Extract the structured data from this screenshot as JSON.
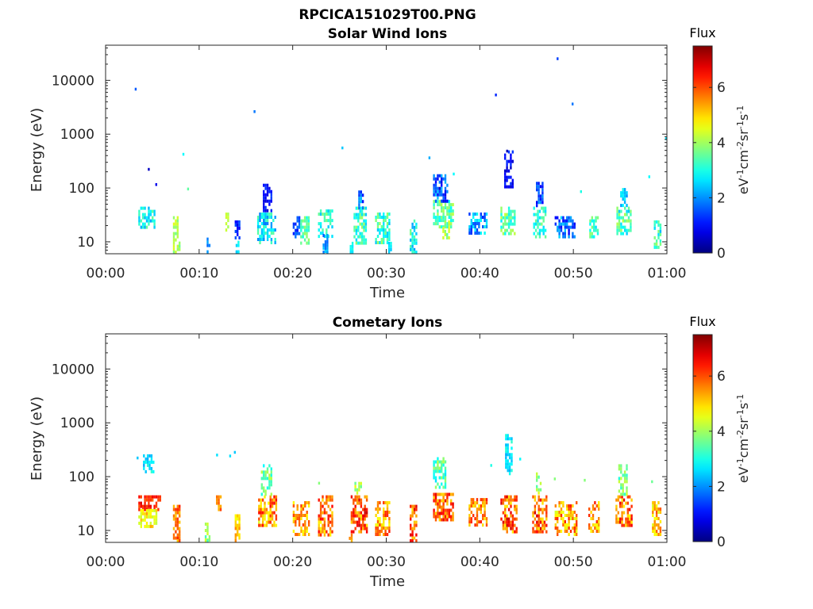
{
  "figure": {
    "filename": "RPCICA151029T00.PNG"
  },
  "chart_data": [
    {
      "type": "heatmap",
      "title": "Solar Wind Ions",
      "xlabel": "Time",
      "ylabel": "Energy (eV)",
      "x_tick_labels": [
        "00:00",
        "00:10",
        "00:20",
        "00:30",
        "00:40",
        "00:50",
        "01:00"
      ],
      "x_ticks_min": [
        0,
        10,
        20,
        30,
        40,
        50,
        60
      ],
      "xlim_min": [
        0,
        60
      ],
      "y_scale": "log",
      "y_tick_labels": [
        "10",
        "100",
        "1000",
        "10000"
      ],
      "y_ticks": [
        10,
        100,
        1000,
        10000
      ],
      "ylim": [
        6,
        45000
      ],
      "colorbar": {
        "title": "Flux",
        "unit": "eV-1cm-2sr-1s-1",
        "range": [
          0,
          7.5
        ],
        "tick_labels": [
          "0",
          "2",
          "4",
          "6"
        ],
        "ticks": [
          0,
          2,
          4,
          6
        ],
        "colormap": "jet"
      },
      "clusters": [
        {
          "t": [
            3.5,
            5.2
          ],
          "e": [
            18,
            45
          ],
          "v": [
            2.1,
            3.6
          ]
        },
        {
          "t": [
            7.2,
            8.0
          ],
          "e": [
            6,
            30
          ],
          "v": [
            3.5,
            4.5
          ]
        },
        {
          "t": [
            10.8,
            11.1
          ],
          "e": [
            6,
            12
          ],
          "v": [
            1.6,
            2.2
          ]
        },
        {
          "t": [
            12.8,
            13.2
          ],
          "e": [
            14,
            40
          ],
          "v": [
            4.0,
            4.5
          ]
        },
        {
          "t": [
            13.8,
            14.3
          ],
          "e": [
            12,
            25
          ],
          "v": [
            0.8,
            1.6
          ]
        },
        {
          "t": [
            13.9,
            14.2
          ],
          "e": [
            6,
            12
          ],
          "v": [
            2.2,
            3.0
          ]
        },
        {
          "t": [
            16.2,
            18.2
          ],
          "e": [
            10,
            35
          ],
          "v": [
            1.8,
            3.5
          ]
        },
        {
          "t": [
            16.8,
            17.8
          ],
          "e": [
            40,
            120
          ],
          "v": [
            0.6,
            1.4
          ]
        },
        {
          "t": [
            20.0,
            20.8
          ],
          "e": [
            12,
            30
          ],
          "v": [
            1.0,
            1.8
          ]
        },
        {
          "t": [
            20.8,
            21.8
          ],
          "e": [
            10,
            30
          ],
          "v": [
            2.8,
            4.0
          ]
        },
        {
          "t": [
            22.7,
            24.2
          ],
          "e": [
            12,
            40
          ],
          "v": [
            2.4,
            3.8
          ]
        },
        {
          "t": [
            23.2,
            23.8
          ],
          "e": [
            6,
            14
          ],
          "v": [
            1.6,
            2.6
          ]
        },
        {
          "t": [
            26.5,
            27.8
          ],
          "e": [
            10,
            45
          ],
          "v": [
            2.4,
            4.0
          ]
        },
        {
          "t": [
            27.0,
            27.6
          ],
          "e": [
            45,
            90
          ],
          "v": [
            1.0,
            2.4
          ]
        },
        {
          "t": [
            26.1,
            26.4
          ],
          "e": [
            6,
            10
          ],
          "v": [
            2.5,
            3.2
          ]
        },
        {
          "t": [
            28.8,
            30.3
          ],
          "e": [
            10,
            35
          ],
          "v": [
            2.4,
            4.0
          ]
        },
        {
          "t": [
            30.2,
            30.6
          ],
          "e": [
            6,
            10
          ],
          "v": [
            2.3,
            3.0
          ]
        },
        {
          "t": [
            32.5,
            33.3
          ],
          "e": [
            6,
            26
          ],
          "v": [
            2.0,
            3.8
          ]
        },
        {
          "t": [
            35.0,
            37.2
          ],
          "e": [
            20,
            60
          ],
          "v": [
            2.8,
            4.2
          ]
        },
        {
          "t": [
            35.0,
            36.5
          ],
          "e": [
            60,
            180
          ],
          "v": [
            0.6,
            2.4
          ]
        },
        {
          "t": [
            36.0,
            36.8
          ],
          "e": [
            12,
            25
          ],
          "v": [
            3.5,
            4.5
          ]
        },
        {
          "t": [
            38.8,
            40.8
          ],
          "e": [
            15,
            35
          ],
          "v": [
            1.2,
            3.0
          ]
        },
        {
          "t": [
            42.2,
            43.8
          ],
          "e": [
            15,
            45
          ],
          "v": [
            2.6,
            4.4
          ]
        },
        {
          "t": [
            42.6,
            43.5
          ],
          "e": [
            100,
            500
          ],
          "v": [
            0.5,
            1.4
          ]
        },
        {
          "t": [
            45.7,
            47.0
          ],
          "e": [
            12,
            45
          ],
          "v": [
            2.4,
            3.8
          ]
        },
        {
          "t": [
            46.0,
            46.8
          ],
          "e": [
            50,
            130
          ],
          "v": [
            0.8,
            2.2
          ]
        },
        {
          "t": [
            48.0,
            50.2
          ],
          "e": [
            12,
            30
          ],
          "v": [
            0.8,
            2.6
          ]
        },
        {
          "t": [
            51.7,
            52.7
          ],
          "e": [
            12,
            30
          ],
          "v": [
            2.6,
            4.0
          ]
        },
        {
          "t": [
            54.6,
            56.2
          ],
          "e": [
            15,
            45
          ],
          "v": [
            2.4,
            4.2
          ]
        },
        {
          "t": [
            55.0,
            55.7
          ],
          "e": [
            45,
            100
          ],
          "v": [
            2.0,
            3.2
          ]
        },
        {
          "t": [
            58.6,
            59.4
          ],
          "e": [
            8,
            25
          ],
          "v": [
            2.2,
            4.0
          ]
        }
      ],
      "points": [
        {
          "t": 3.2,
          "e": 6800,
          "v": 1.6
        },
        {
          "t": 8.3,
          "e": 420,
          "v": 2.8
        },
        {
          "t": 8.8,
          "e": 95,
          "v": 3.5
        },
        {
          "t": 15.9,
          "e": 2600,
          "v": 1.8
        },
        {
          "t": 25.3,
          "e": 550,
          "v": 2.4
        },
        {
          "t": 34.6,
          "e": 360,
          "v": 2.2
        },
        {
          "t": 37.2,
          "e": 180,
          "v": 2.8
        },
        {
          "t": 41.7,
          "e": 5300,
          "v": 1.2
        },
        {
          "t": 48.3,
          "e": 25000,
          "v": 1.4
        },
        {
          "t": 49.9,
          "e": 3600,
          "v": 1.8
        },
        {
          "t": 50.8,
          "e": 85,
          "v": 3.0
        },
        {
          "t": 58.1,
          "e": 160,
          "v": 2.8
        },
        {
          "t": 59.9,
          "e": 820,
          "v": 2.6
        },
        {
          "t": 4.6,
          "e": 220,
          "v": 0.5
        },
        {
          "t": 5.4,
          "e": 115,
          "v": 0.8
        },
        {
          "t": 42.9,
          "e": 480,
          "v": 0.4
        }
      ]
    },
    {
      "type": "heatmap",
      "title": "Cometary Ions",
      "xlabel": "Time",
      "ylabel": "Energy (eV)",
      "x_tick_labels": [
        "00:00",
        "00:10",
        "00:20",
        "00:30",
        "00:40",
        "00:50",
        "01:00"
      ],
      "x_ticks_min": [
        0,
        10,
        20,
        30,
        40,
        50,
        60
      ],
      "xlim_min": [
        0,
        60
      ],
      "y_scale": "log",
      "y_tick_labels": [
        "10",
        "100",
        "1000",
        "10000"
      ],
      "y_ticks": [
        10,
        100,
        1000,
        10000
      ],
      "ylim": [
        6,
        45000
      ],
      "colorbar": {
        "title": "Flux",
        "unit": "eV-1cm-2sr-1s-1",
        "range": [
          0,
          7.5
        ],
        "tick_labels": [
          "0",
          "2",
          "4",
          "6"
        ],
        "ticks": [
          0,
          2,
          4,
          6
        ],
        "colormap": "jet"
      },
      "clusters": [
        {
          "t": [
            3.5,
            5.8
          ],
          "e": [
            25,
            45
          ],
          "v": [
            5.8,
            6.8
          ]
        },
        {
          "t": [
            3.5,
            5.5
          ],
          "e": [
            12,
            25
          ],
          "v": [
            4.2,
            5.4
          ]
        },
        {
          "t": [
            4.0,
            5.2
          ],
          "e": [
            120,
            260
          ],
          "v": [
            2.2,
            3.2
          ]
        },
        {
          "t": [
            7.2,
            8.0
          ],
          "e": [
            6,
            30
          ],
          "v": [
            5.0,
            6.8
          ]
        },
        {
          "t": [
            10.6,
            11.2
          ],
          "e": [
            6,
            14
          ],
          "v": [
            3.2,
            4.4
          ]
        },
        {
          "t": [
            11.8,
            12.4
          ],
          "e": [
            25,
            45
          ],
          "v": [
            5.0,
            6.2
          ]
        },
        {
          "t": [
            13.8,
            14.3
          ],
          "e": [
            6,
            20
          ],
          "v": [
            4.6,
            5.6
          ]
        },
        {
          "t": [
            16.3,
            18.3
          ],
          "e": [
            12,
            45
          ],
          "v": [
            4.4,
            6.6
          ]
        },
        {
          "t": [
            16.6,
            17.8
          ],
          "e": [
            50,
            170
          ],
          "v": [
            2.8,
            4.2
          ]
        },
        {
          "t": [
            20.0,
            21.8
          ],
          "e": [
            8,
            35
          ],
          "v": [
            4.6,
            6.2
          ]
        },
        {
          "t": [
            22.7,
            24.3
          ],
          "e": [
            8,
            45
          ],
          "v": [
            4.6,
            6.6
          ]
        },
        {
          "t": [
            26.2,
            28.0
          ],
          "e": [
            10,
            45
          ],
          "v": [
            4.8,
            7.0
          ]
        },
        {
          "t": [
            26.6,
            27.4
          ],
          "e": [
            50,
            80
          ],
          "v": [
            3.6,
            4.6
          ]
        },
        {
          "t": [
            26.0,
            26.4
          ],
          "e": [
            6,
            10
          ],
          "v": [
            5.2,
            6.0
          ]
        },
        {
          "t": [
            28.8,
            30.3
          ],
          "e": [
            8,
            35
          ],
          "v": [
            4.6,
            6.4
          ]
        },
        {
          "t": [
            32.5,
            33.3
          ],
          "e": [
            6,
            30
          ],
          "v": [
            4.8,
            6.8
          ]
        },
        {
          "t": [
            35.0,
            37.2
          ],
          "e": [
            15,
            50
          ],
          "v": [
            5.0,
            6.8
          ]
        },
        {
          "t": [
            35.0,
            36.4
          ],
          "e": [
            60,
            230
          ],
          "v": [
            2.6,
            4.2
          ]
        },
        {
          "t": [
            38.8,
            40.8
          ],
          "e": [
            12,
            40
          ],
          "v": [
            4.6,
            6.4
          ]
        },
        {
          "t": [
            42.2,
            43.9
          ],
          "e": [
            10,
            45
          ],
          "v": [
            4.8,
            7.0
          ]
        },
        {
          "t": [
            42.7,
            43.5
          ],
          "e": [
            120,
            620
          ],
          "v": [
            2.2,
            3.2
          ]
        },
        {
          "t": [
            45.6,
            47.1
          ],
          "e": [
            10,
            45
          ],
          "v": [
            4.8,
            6.9
          ]
        },
        {
          "t": [
            46.0,
            46.6
          ],
          "e": [
            50,
            120
          ],
          "v": [
            3.4,
            4.6
          ]
        },
        {
          "t": [
            48.0,
            50.3
          ],
          "e": [
            8,
            35
          ],
          "v": [
            4.4,
            6.4
          ]
        },
        {
          "t": [
            51.6,
            52.8
          ],
          "e": [
            10,
            35
          ],
          "v": [
            4.6,
            6.4
          ]
        },
        {
          "t": [
            54.5,
            56.3
          ],
          "e": [
            12,
            45
          ],
          "v": [
            4.6,
            6.8
          ]
        },
        {
          "t": [
            54.8,
            55.8
          ],
          "e": [
            50,
            170
          ],
          "v": [
            3.0,
            4.4
          ]
        },
        {
          "t": [
            58.4,
            59.4
          ],
          "e": [
            8,
            35
          ],
          "v": [
            4.4,
            6.0
          ]
        }
      ],
      "points": [
        {
          "t": 3.4,
          "e": 220,
          "v": 2.4
        },
        {
          "t": 11.9,
          "e": 250,
          "v": 2.6
        },
        {
          "t": 13.3,
          "e": 240,
          "v": 2.6
        },
        {
          "t": 13.8,
          "e": 280,
          "v": 2.4
        },
        {
          "t": 22.8,
          "e": 75,
          "v": 3.8
        },
        {
          "t": 41.2,
          "e": 160,
          "v": 3.0
        },
        {
          "t": 44.3,
          "e": 210,
          "v": 2.8
        },
        {
          "t": 48.0,
          "e": 90,
          "v": 3.8
        },
        {
          "t": 51.2,
          "e": 85,
          "v": 3.8
        },
        {
          "t": 58.4,
          "e": 80,
          "v": 3.6
        }
      ]
    }
  ]
}
